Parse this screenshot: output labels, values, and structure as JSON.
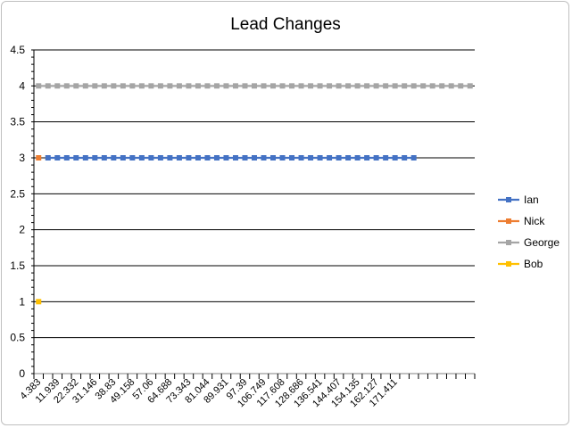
{
  "chart_data": {
    "type": "line",
    "title": "Lead Changes",
    "xlabel": "",
    "ylabel": "",
    "ylim": [
      0,
      4.5
    ],
    "yticks": [
      "0",
      "0.5",
      "1",
      "1.5",
      "2",
      "2.5",
      "3",
      "3.5",
      "4",
      "4.5"
    ],
    "x_tick_labels": [
      "4.383",
      "11.939",
      "22.332",
      "31.146",
      "38.83",
      "49.158",
      "57.06",
      "64.688",
      "73.343",
      "81.044",
      "89.931",
      "97.39",
      "106.749",
      "117.608",
      "128.686",
      "136.541",
      "144.407",
      "154.135",
      "162.127",
      "171.411"
    ],
    "category_count": 47,
    "grid": true,
    "legend_position": "right",
    "series": [
      {
        "name": "Ian",
        "color": "#4472c4",
        "start": 1,
        "end": 40,
        "value": 3
      },
      {
        "name": "Nick",
        "color": "#ed7d31",
        "start": 0,
        "end": 0,
        "value": 3
      },
      {
        "name": "George",
        "color": "#a5a5a5",
        "start": 0,
        "end": 46,
        "value": 4
      },
      {
        "name": "Bob",
        "color": "#ffc000",
        "start": 0,
        "end": 0,
        "value": 1
      }
    ]
  }
}
